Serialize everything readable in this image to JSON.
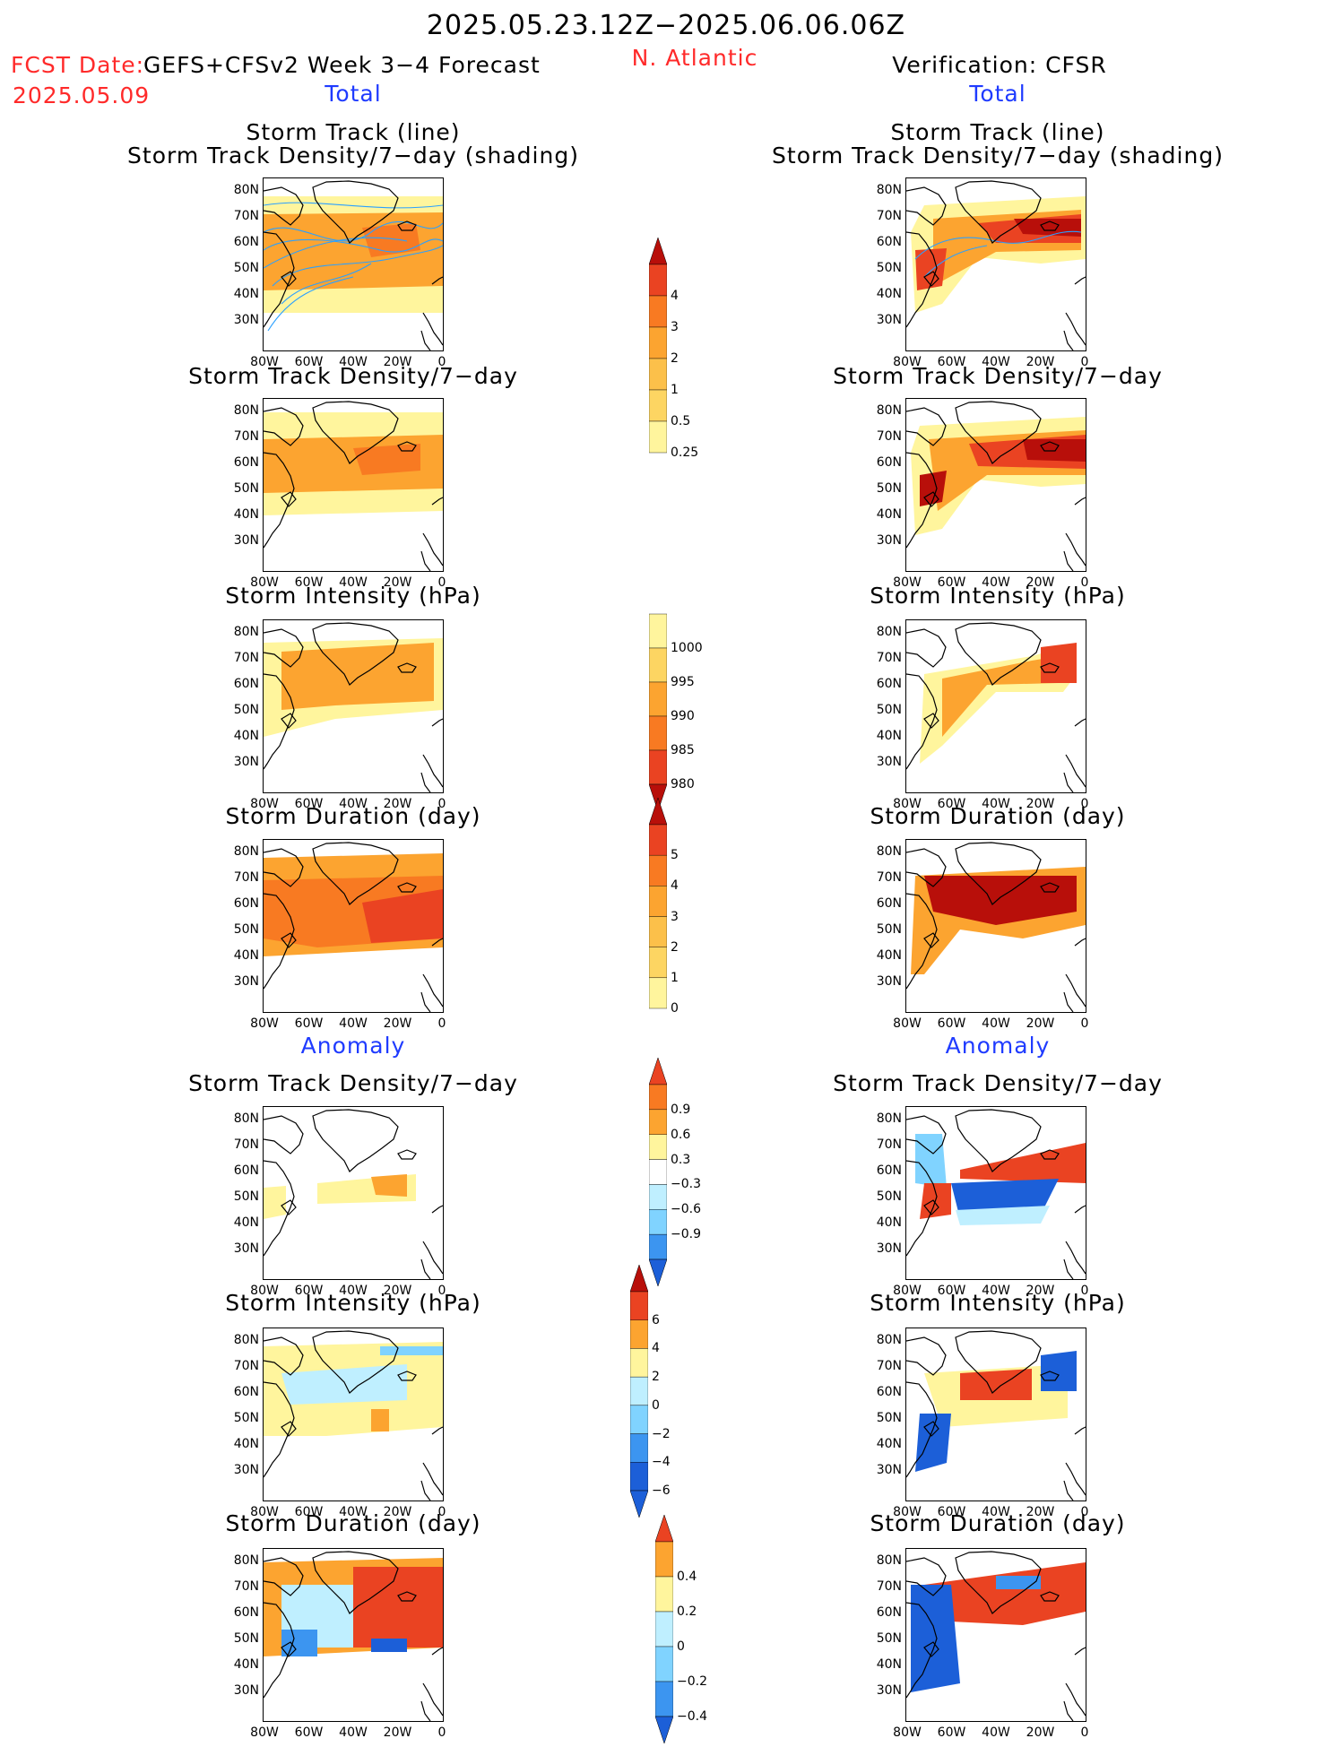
{
  "header": {
    "date_range": "2025.05.23.12Z−2025.06.06.06Z",
    "fcst_date_label": "FCST Date:",
    "fcst_date": "2025.05.09",
    "forecast_title": "GEFS+CFSv2 Week 3−4 Forecast",
    "region": "N. Atlantic",
    "verification": "Verification: CFSR"
  },
  "section_labels": {
    "total": "Total",
    "anomaly": "Anomaly"
  },
  "panel_titles": {
    "track_line": "Storm Track (line)",
    "track_density_shading": "Storm Track Density/7−day (shading)",
    "track_density": "Storm Track Density/7−day",
    "intensity": "Storm Intensity (hPa)",
    "duration": "Storm Duration (day)"
  },
  "axes": {
    "lat_ticks": [
      "80N",
      "70N",
      "60N",
      "50N",
      "40N",
      "30N"
    ],
    "lon_ticks": [
      "80W",
      "60W",
      "40W",
      "20W",
      "0"
    ]
  },
  "colorbars": {
    "track_density_total": [
      "4",
      "3",
      "2",
      "1",
      "0.5",
      "0.25"
    ],
    "intensity_total": [
      "1000",
      "995",
      "990",
      "985",
      "980"
    ],
    "duration_total": [
      "5",
      "4",
      "3",
      "2",
      "1",
      "0"
    ],
    "track_density_anom": [
      "0.9",
      "0.6",
      "0.3",
      "−0.3",
      "−0.6",
      "−0.9"
    ],
    "intensity_anom": [
      "6",
      "4",
      "2",
      "0",
      "−2",
      "−4",
      "−6"
    ],
    "duration_anom": [
      "0.4",
      "0.2",
      "0",
      "−0.2",
      "−0.4"
    ]
  },
  "colors": {
    "title_red": "#ff2a2a",
    "label_blue": "#1f3bff",
    "track_line": "#2aa0ff"
  }
}
